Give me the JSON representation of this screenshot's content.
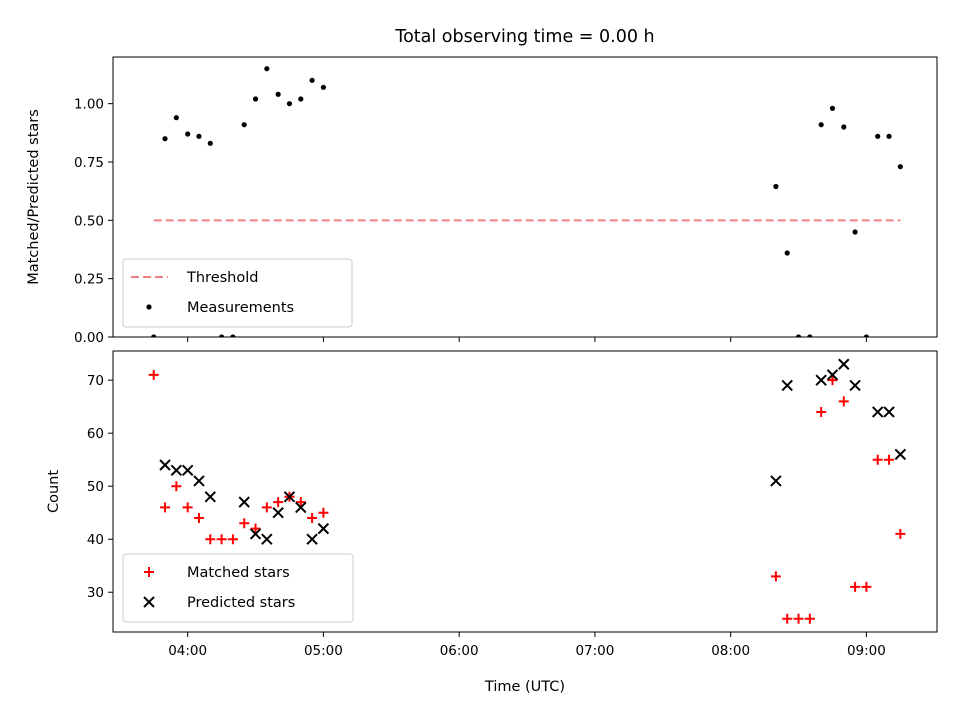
{
  "chart_data": {
    "title": "Total observing time = 0.00 h",
    "xlabel": "Time (UTC)",
    "x_ticks": [
      "04:00",
      "05:00",
      "06:00",
      "07:00",
      "08:00",
      "09:00"
    ],
    "x_tick_hours": [
      4,
      5,
      6,
      7,
      8,
      9
    ],
    "xlim_hours": [
      3.45,
      9.52
    ],
    "colors": {
      "threshold": "#f08080",
      "measurements": "#000000",
      "matched": "#ff0000",
      "predicted": "#000000"
    },
    "panels": [
      {
        "type": "scatter",
        "ylabel": "Matched/Predicted stars",
        "ylim": [
          0,
          1.2
        ],
        "y_ticks": [
          0.0,
          0.25,
          0.5,
          0.75,
          1.0
        ],
        "y_tick_labels": [
          "0.00",
          "0.25",
          "0.50",
          "0.75",
          "1.00"
        ],
        "legend": {
          "placement": "lower-left",
          "entries": [
            "Threshold",
            "Measurements"
          ]
        },
        "threshold": {
          "name": "Threshold",
          "value": 0.5,
          "x_range": [
            "03:45",
            "09:15"
          ]
        },
        "series": [
          {
            "name": "Measurements",
            "marker": "dot",
            "x": [
              "03:45",
              "03:50",
              "03:55",
              "04:00",
              "04:05",
              "04:10",
              "04:15",
              "04:20",
              "04:25",
              "04:30",
              "04:35",
              "04:40",
              "04:45",
              "04:50",
              "04:55",
              "05:00",
              "08:20",
              "08:25",
              "08:30",
              "08:35",
              "08:40",
              "08:45",
              "08:50",
              "08:55",
              "09:00",
              "09:05",
              "09:10",
              "09:15"
            ],
            "y": [
              0.0,
              0.85,
              0.94,
              0.87,
              0.86,
              0.83,
              0.0,
              0.0,
              0.91,
              1.02,
              1.15,
              1.04,
              1.0,
              1.02,
              1.1,
              1.07,
              0.645,
              0.36,
              0.0,
              0.0,
              0.91,
              0.98,
              0.9,
              0.45,
              0.0,
              0.86,
              0.86,
              0.73
            ]
          }
        ]
      },
      {
        "type": "scatter",
        "ylabel": "Count",
        "ylim": [
          22.5,
          75.5
        ],
        "y_ticks": [
          30,
          40,
          50,
          60,
          70
        ],
        "y_tick_labels": [
          "30",
          "40",
          "50",
          "60",
          "70"
        ],
        "legend": {
          "placement": "lower-left",
          "entries": [
            "Matched stars",
            "Predicted stars"
          ]
        },
        "series": [
          {
            "name": "Matched stars",
            "marker": "plus",
            "x": [
              "03:45",
              "03:50",
              "03:55",
              "04:00",
              "04:05",
              "04:10",
              "04:15",
              "04:20",
              "04:25",
              "04:30",
              "04:35",
              "04:40",
              "04:45",
              "04:50",
              "04:55",
              "05:00",
              "08:20",
              "08:25",
              "08:30",
              "08:35",
              "08:40",
              "08:45",
              "08:50",
              "08:55",
              "09:00",
              "09:05",
              "09:10",
              "09:15"
            ],
            "y": [
              71,
              46,
              50,
              46,
              44,
              40,
              40,
              40,
              43,
              42,
              46,
              47,
              48,
              47,
              44,
              45,
              33,
              25,
              25,
              25,
              64,
              70,
              66,
              31,
              31,
              55,
              55,
              41
            ]
          },
          {
            "name": "Predicted stars",
            "marker": "x",
            "x": [
              "03:50",
              "03:55",
              "04:00",
              "04:05",
              "04:10",
              "04:25",
              "04:30",
              "04:35",
              "04:40",
              "04:45",
              "04:50",
              "04:55",
              "05:00",
              "08:20",
              "08:25",
              "08:40",
              "08:45",
              "08:50",
              "08:55",
              "09:05",
              "09:10",
              "09:15"
            ],
            "y": [
              54,
              53,
              53,
              51,
              48,
              47,
              41,
              40,
              45,
              48,
              46,
              40,
              42,
              51,
              69,
              70,
              71,
              73,
              69,
              64,
              64,
              56
            ]
          }
        ]
      }
    ]
  }
}
